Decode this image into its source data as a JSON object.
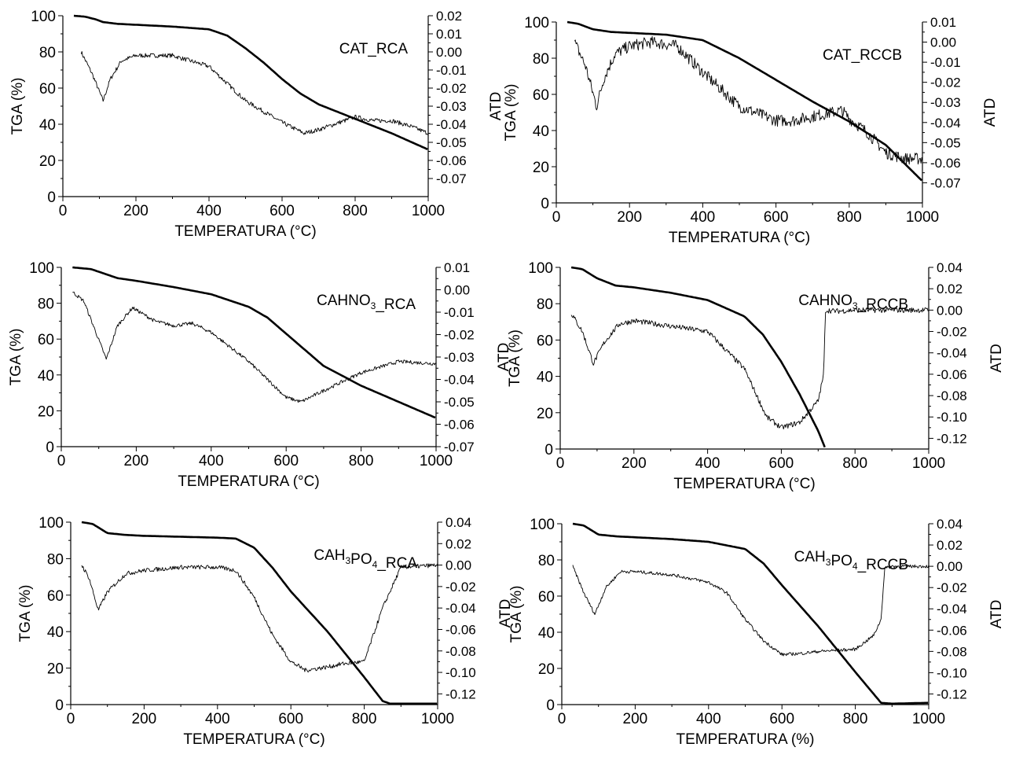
{
  "chart_data": [
    {
      "type": "line",
      "title": "CAT_RCA",
      "xlabel": "TEMPERATURA (°C)",
      "ylabel": "TGA (%)",
      "y2label": "ATD",
      "xlim": [
        0,
        1000
      ],
      "ylim": [
        0,
        100
      ],
      "y2lim": [
        -0.08,
        0.02
      ],
      "xticks": [
        "0",
        "200",
        "400",
        "600",
        "800",
        "1000"
      ],
      "yticks": [
        "0",
        "20",
        "40",
        "60",
        "80",
        "100"
      ],
      "y2ticks": [
        "0.02",
        "0.01",
        "0.00",
        "-0.01",
        "-0.02",
        "-0.03",
        "-0.04",
        "-0.05",
        "-0.06",
        "-0.07"
      ],
      "noise": 0.0012,
      "series": [
        {
          "axis": "TGA",
          "x": [
            30,
            60,
            90,
            110,
            150,
            200,
            300,
            400,
            450,
            500,
            550,
            600,
            650,
            700,
            800,
            900,
            1000
          ],
          "y": [
            100,
            99.5,
            98,
            96.5,
            95.5,
            95,
            94,
            92.5,
            89,
            82,
            74,
            65,
            57,
            51,
            43,
            35,
            26
          ]
        },
        {
          "axis": "ATD",
          "x": [
            50,
            80,
            110,
            130,
            160,
            200,
            300,
            400,
            500,
            600,
            660,
            700,
            800,
            850,
            900,
            950,
            1000
          ],
          "y": [
            0.0,
            -0.012,
            -0.027,
            -0.015,
            -0.005,
            -0.002,
            -0.002,
            -0.008,
            -0.027,
            -0.039,
            -0.045,
            -0.043,
            -0.036,
            -0.038,
            -0.038,
            -0.041,
            -0.045
          ]
        }
      ]
    },
    {
      "type": "line",
      "title": "CAT_RCCB",
      "xlabel": "TEMPERATURA (°C)",
      "ylabel": "TGA (%)",
      "y2label": "ATD",
      "xlim": [
        0,
        1000
      ],
      "ylim": [
        0,
        100
      ],
      "y2lim": [
        -0.08,
        0.01
      ],
      "xticks": [
        "0",
        "200",
        "400",
        "600",
        "800",
        "1000"
      ],
      "yticks": [
        "0",
        "20",
        "40",
        "60",
        "80",
        "100"
      ],
      "y2ticks": [
        "0.01",
        "0.00",
        "-0.01",
        "-0.02",
        "-0.03",
        "-0.04",
        "-0.05",
        "-0.06",
        "-0.07"
      ],
      "noise": 0.003,
      "series": [
        {
          "axis": "TGA",
          "x": [
            30,
            60,
            100,
            150,
            200,
            300,
            400,
            500,
            600,
            700,
            800,
            900,
            1000
          ],
          "y": [
            100,
            99,
            96,
            94.5,
            94,
            93,
            90,
            80,
            68,
            56,
            45,
            32,
            12
          ]
        },
        {
          "axis": "ATD",
          "x": [
            50,
            80,
            110,
            130,
            160,
            200,
            260,
            330,
            400,
            500,
            600,
            650,
            700,
            780,
            800,
            850,
            900,
            950,
            1000
          ],
          "y": [
            0.0,
            -0.012,
            -0.032,
            -0.018,
            -0.006,
            -0.002,
            0.0,
            -0.002,
            -0.015,
            -0.032,
            -0.039,
            -0.039,
            -0.037,
            -0.034,
            -0.038,
            -0.045,
            -0.055,
            -0.058,
            -0.058
          ]
        }
      ]
    },
    {
      "type": "line",
      "title": "CAHNO3_RCA",
      "xlabel": "TEMPERATURA (°C)",
      "ylabel": "TGA (%)",
      "y2label": "ATD",
      "xlim": [
        0,
        1000
      ],
      "ylim": [
        0,
        100
      ],
      "y2lim": [
        -0.07,
        0.01
      ],
      "xticks": [
        "0",
        "200",
        "400",
        "600",
        "800",
        "1000"
      ],
      "yticks": [
        "0",
        "20",
        "40",
        "60",
        "80",
        "100"
      ],
      "y2ticks": [
        "0.01",
        "0.00",
        "-0.01",
        "-0.02",
        "-0.03",
        "-0.04",
        "-0.05",
        "-0.06",
        "-0.07"
      ],
      "noise": 0.0008,
      "series": [
        {
          "axis": "TGA",
          "x": [
            30,
            80,
            150,
            200,
            300,
            400,
            500,
            550,
            600,
            700,
            800,
            900,
            1000
          ],
          "y": [
            100,
            99,
            94,
            92.5,
            89,
            85,
            78,
            72,
            63,
            45,
            34,
            25,
            16
          ]
        },
        {
          "axis": "ATD",
          "x": [
            30,
            60,
            90,
            120,
            150,
            190,
            250,
            300,
            350,
            400,
            500,
            600,
            640,
            700,
            800,
            900,
            1000
          ],
          "y": [
            -0.001,
            -0.005,
            -0.018,
            -0.031,
            -0.016,
            -0.008,
            -0.014,
            -0.016,
            -0.015,
            -0.019,
            -0.032,
            -0.048,
            -0.05,
            -0.045,
            -0.037,
            -0.032,
            -0.033
          ]
        }
      ]
    },
    {
      "type": "line",
      "title": "CAHNO3_RCCB",
      "xlabel": "TEMPERATURA (°C)",
      "ylabel": "TGA (%)",
      "y2label": "ATD",
      "xlim": [
        0,
        1000
      ],
      "ylim": [
        0,
        100
      ],
      "y2lim": [
        -0.13,
        0.04
      ],
      "xticks": [
        "0",
        "200",
        "400",
        "600",
        "800",
        "1000"
      ],
      "yticks": [
        "0",
        "20",
        "40",
        "60",
        "80",
        "100"
      ],
      "y2ticks": [
        "0.04",
        "0.02",
        "0.00",
        "-0.02",
        "-0.04",
        "-0.06",
        "-0.08",
        "-0.10",
        "-0.12"
      ],
      "noise": 0.0025,
      "series": [
        {
          "axis": "TGA",
          "x": [
            30,
            60,
            100,
            150,
            200,
            300,
            400,
            500,
            550,
            600,
            650,
            700,
            720
          ],
          "y": [
            100,
            99,
            94,
            90,
            89,
            86,
            82,
            73,
            63,
            48,
            30,
            10,
            0
          ]
        },
        {
          "axis": "ATD",
          "x": [
            30,
            60,
            90,
            120,
            160,
            200,
            300,
            400,
            500,
            560,
            600,
            650,
            700,
            715,
            720,
            750,
            800,
            900,
            1000
          ],
          "y": [
            -0.003,
            -0.02,
            -0.05,
            -0.03,
            -0.013,
            -0.01,
            -0.015,
            -0.02,
            -0.055,
            -0.1,
            -0.11,
            -0.105,
            -0.085,
            -0.06,
            0.0,
            -0.001,
            0.0,
            0.0,
            0.0
          ]
        }
      ]
    },
    {
      "type": "line",
      "title": "CAH3PO4_RCA",
      "xlabel": "TEMPERATURA (°C)",
      "ylabel": "TGA (%)",
      "y2label": "ATD",
      "xlim": [
        0,
        1000
      ],
      "ylim": [
        0,
        100
      ],
      "y2lim": [
        -0.13,
        0.04
      ],
      "xticks": [
        "0",
        "200",
        "400",
        "600",
        "800",
        "1000"
      ],
      "yticks": [
        "0",
        "20",
        "40",
        "60",
        "80",
        "100"
      ],
      "y2ticks": [
        "0.04",
        "0.02",
        "0.00",
        "-0.02",
        "-0.04",
        "-0.06",
        "-0.08",
        "-0.10",
        "-0.12"
      ],
      "noise": 0.002,
      "series": [
        {
          "axis": "TGA",
          "x": [
            30,
            60,
            100,
            150,
            200,
            300,
            400,
            450,
            500,
            550,
            600,
            700,
            800,
            850,
            870,
            900,
            1000
          ],
          "y": [
            100,
            99,
            94,
            93,
            92.5,
            92,
            91.5,
            91,
            86,
            75,
            62,
            40,
            15,
            2,
            0.5,
            0.5,
            0.5
          ]
        },
        {
          "axis": "ATD",
          "x": [
            30,
            50,
            75,
            100,
            150,
            200,
            300,
            400,
            450,
            500,
            550,
            600,
            640,
            700,
            740,
            800,
            850,
            900,
            1000
          ],
          "y": [
            0.0,
            -0.012,
            -0.042,
            -0.025,
            -0.008,
            -0.005,
            -0.002,
            -0.002,
            -0.005,
            -0.03,
            -0.065,
            -0.09,
            -0.098,
            -0.095,
            -0.092,
            -0.09,
            -0.04,
            -0.002,
            0.0
          ]
        }
      ]
    },
    {
      "type": "line",
      "title": "CAH3PO4_RCCB",
      "xlabel": "TEMPERATURA (%)",
      "ylabel": "TGA (%)",
      "y2label": "ATD",
      "xlim": [
        0,
        1000
      ],
      "ylim": [
        0,
        100
      ],
      "y2lim": [
        -0.13,
        0.04
      ],
      "xticks": [
        "0",
        "200",
        "400",
        "600",
        "800",
        "1000"
      ],
      "yticks": [
        "0",
        "20",
        "40",
        "60",
        "80",
        "100"
      ],
      "y2ticks": [
        "0.04",
        "0.02",
        "0.00",
        "-0.02",
        "-0.04",
        "-0.06",
        "-0.08",
        "-0.10",
        "-0.12"
      ],
      "noise": 0.0015,
      "series": [
        {
          "axis": "TGA",
          "x": [
            30,
            60,
            100,
            150,
            200,
            300,
            400,
            500,
            550,
            600,
            700,
            800,
            870,
            900,
            1000
          ],
          "y": [
            100,
            99,
            94,
            93,
            92.5,
            91.5,
            90,
            86,
            78,
            66,
            43,
            18,
            1,
            0.5,
            1
          ]
        },
        {
          "axis": "ATD",
          "x": [
            30,
            60,
            90,
            120,
            160,
            200,
            300,
            400,
            450,
            500,
            550,
            600,
            650,
            700,
            800,
            850,
            870,
            880,
            900,
            1000
          ],
          "y": [
            0.0,
            -0.025,
            -0.045,
            -0.02,
            -0.005,
            -0.005,
            -0.008,
            -0.015,
            -0.025,
            -0.05,
            -0.07,
            -0.083,
            -0.082,
            -0.08,
            -0.078,
            -0.065,
            -0.05,
            -0.002,
            0.0,
            0.0
          ]
        }
      ]
    }
  ]
}
